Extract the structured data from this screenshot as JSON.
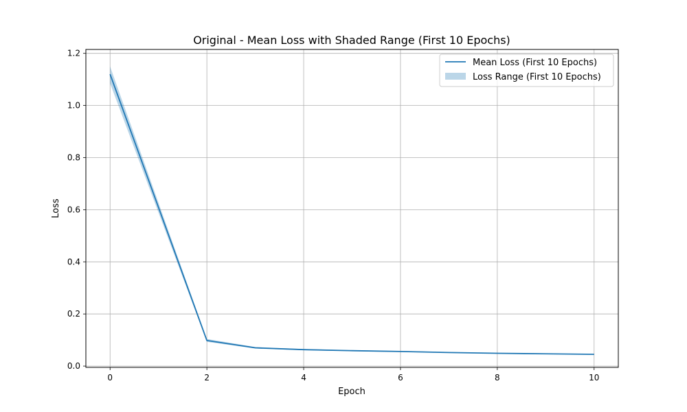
{
  "chart_data": {
    "type": "line",
    "title": "Original - Mean Loss with Shaded Range (First 10 Epochs)",
    "xlabel": "Epoch",
    "ylabel": "Loss",
    "xlim": [
      -0.5,
      10.5
    ],
    "ylim": [
      -0.005,
      1.215
    ],
    "x_ticks": [
      0,
      2,
      4,
      6,
      8,
      10
    ],
    "y_ticks": [
      0.0,
      0.2,
      0.4,
      0.6,
      0.8,
      1.0,
      1.2
    ],
    "x_tick_labels": [
      "0",
      "2",
      "4",
      "6",
      "8",
      "10"
    ],
    "y_tick_labels": [
      "0.0",
      "0.2",
      "0.4",
      "0.6",
      "0.8",
      "1.0",
      "1.2"
    ],
    "grid": true,
    "legend_position": "top-right",
    "x": [
      0,
      2,
      3,
      4,
      5,
      6,
      7,
      8,
      9,
      10
    ],
    "series": [
      {
        "name": "Mean Loss (First 10 Epochs)",
        "kind": "line",
        "color": "#1f77b4",
        "values": [
          1.12,
          0.098,
          0.07,
          0.063,
          0.059,
          0.056,
          0.052,
          0.049,
          0.047,
          0.045
        ]
      },
      {
        "name": "Loss Range (First 10 Epochs)",
        "kind": "band",
        "color": "#1f77b4",
        "lower": [
          1.085,
          0.093,
          0.067,
          0.061,
          0.057,
          0.054,
          0.051,
          0.048,
          0.046,
          0.044
        ],
        "upper": [
          1.15,
          0.104,
          0.073,
          0.065,
          0.061,
          0.058,
          0.054,
          0.05,
          0.048,
          0.046
        ]
      }
    ]
  }
}
